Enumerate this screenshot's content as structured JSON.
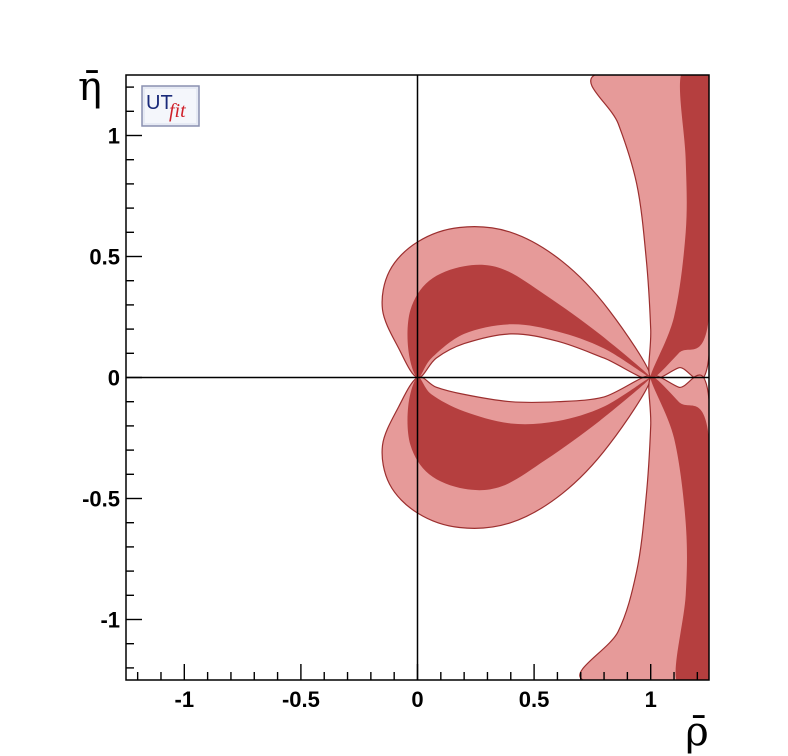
{
  "chart_data": {
    "type": "contour",
    "title": "",
    "xlabel": "ρ̄",
    "ylabel": "η̄",
    "xlim": [
      -1.25,
      1.25
    ],
    "ylim": [
      -1.25,
      1.25
    ],
    "x_ticks": [
      -1,
      -0.5,
      0,
      0.5,
      1
    ],
    "x_tick_labels": [
      "-1",
      "-0.5",
      "0",
      "0.5",
      "1"
    ],
    "y_ticks": [
      -1,
      -0.5,
      0,
      0.5,
      1
    ],
    "y_tick_labels": [
      "-1",
      "-0.5",
      "0",
      "0.5",
      "1"
    ],
    "grid": false,
    "reference_lines": {
      "x": 0,
      "y": 0
    },
    "colors": {
      "inner_region": "#b53f3f",
      "outer_region": "#e69a99",
      "outline": "#9c2f2f"
    },
    "regions": [
      {
        "kind": "upper-lobe",
        "outer": [
          [
            0,
            0
          ],
          [
            -0.08,
            0.12
          ],
          [
            -0.15,
            0.28
          ],
          [
            -0.12,
            0.44
          ],
          [
            0.0,
            0.56
          ],
          [
            0.18,
            0.62
          ],
          [
            0.4,
            0.6
          ],
          [
            0.62,
            0.48
          ],
          [
            0.82,
            0.28
          ],
          [
            1.0,
            0.0
          ],
          [
            0.8,
            0.08
          ],
          [
            0.6,
            0.15
          ],
          [
            0.4,
            0.18
          ],
          [
            0.2,
            0.14
          ],
          [
            0.08,
            0.08
          ]
        ],
        "inner": [
          [
            0,
            0
          ],
          [
            -0.04,
            0.12
          ],
          [
            -0.03,
            0.28
          ],
          [
            0.05,
            0.4
          ],
          [
            0.2,
            0.46
          ],
          [
            0.36,
            0.45
          ],
          [
            0.55,
            0.34
          ],
          [
            0.78,
            0.18
          ],
          [
            1.0,
            0.0
          ],
          [
            0.8,
            0.12
          ],
          [
            0.6,
            0.19
          ],
          [
            0.4,
            0.22
          ],
          [
            0.2,
            0.18
          ],
          [
            0.06,
            0.08
          ]
        ]
      },
      {
        "kind": "lower-lobe",
        "outer": [
          [
            0,
            0
          ],
          [
            -0.08,
            -0.12
          ],
          [
            -0.15,
            -0.28
          ],
          [
            -0.12,
            -0.44
          ],
          [
            0.0,
            -0.56
          ],
          [
            0.18,
            -0.62
          ],
          [
            0.4,
            -0.6
          ],
          [
            0.62,
            -0.48
          ],
          [
            0.82,
            -0.28
          ],
          [
            1.0,
            0.0
          ],
          [
            0.8,
            -0.08
          ],
          [
            0.6,
            -0.1
          ],
          [
            0.4,
            -0.1
          ],
          [
            0.2,
            -0.07
          ],
          [
            0.08,
            -0.04
          ]
        ],
        "inner": [
          [
            0,
            0
          ],
          [
            -0.04,
            -0.12
          ],
          [
            -0.03,
            -0.28
          ],
          [
            0.05,
            -0.4
          ],
          [
            0.2,
            -0.46
          ],
          [
            0.36,
            -0.45
          ],
          [
            0.55,
            -0.34
          ],
          [
            0.78,
            -0.18
          ],
          [
            1.0,
            0.0
          ],
          [
            0.8,
            -0.12
          ],
          [
            0.6,
            -0.18
          ],
          [
            0.4,
            -0.19
          ],
          [
            0.2,
            -0.14
          ],
          [
            0.06,
            -0.07
          ]
        ]
      },
      {
        "kind": "upper-right-band",
        "outer": [
          [
            1.0,
            0.0
          ],
          [
            1.0,
            0.2
          ],
          [
            0.98,
            0.5
          ],
          [
            0.94,
            0.8
          ],
          [
            0.86,
            1.05
          ],
          [
            0.76,
            1.25
          ],
          [
            1.25,
            1.25
          ],
          [
            1.25,
            0.09
          ],
          [
            1.12,
            0.04
          ]
        ],
        "inner": [
          [
            1.0,
            0.0
          ],
          [
            1.1,
            0.25
          ],
          [
            1.15,
            0.6
          ],
          [
            1.15,
            0.9
          ],
          [
            1.13,
            1.25
          ],
          [
            1.25,
            1.25
          ],
          [
            1.25,
            0.25
          ],
          [
            1.12,
            0.1
          ]
        ]
      },
      {
        "kind": "lower-right-band",
        "outer": [
          [
            1.0,
            0.0
          ],
          [
            1.0,
            -0.2
          ],
          [
            0.98,
            -0.5
          ],
          [
            0.94,
            -0.8
          ],
          [
            0.86,
            -1.05
          ],
          [
            0.71,
            -1.25
          ],
          [
            1.25,
            -1.25
          ],
          [
            1.25,
            -0.09
          ],
          [
            1.12,
            -0.04
          ]
        ],
        "inner": [
          [
            1.0,
            0.0
          ],
          [
            1.1,
            -0.25
          ],
          [
            1.15,
            -0.6
          ],
          [
            1.15,
            -0.9
          ],
          [
            1.11,
            -1.25
          ],
          [
            1.25,
            -1.25
          ],
          [
            1.25,
            -0.25
          ],
          [
            1.12,
            -0.1
          ]
        ]
      }
    ]
  }
}
